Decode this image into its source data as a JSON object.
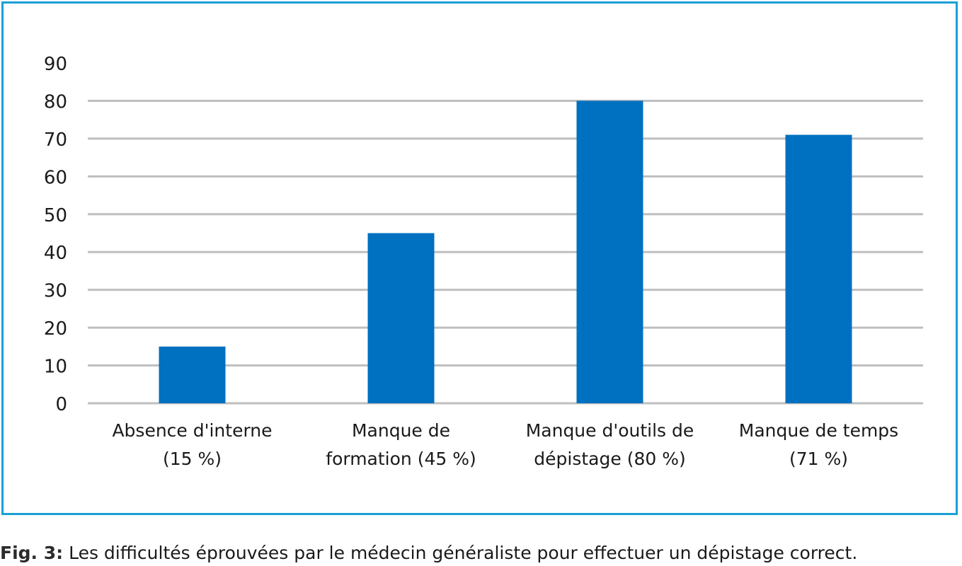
{
  "figure": {
    "caption_prefix": "Fig. 3",
    "caption_sep": ":",
    "caption_text": " Les difficultés éprouvées par le médecin généraliste pour effectuer un dépistage correct."
  },
  "colors": {
    "frame": "#1a9fd6",
    "bar": "#0070c0",
    "grid": "#bfbfbf"
  },
  "chart_data": {
    "type": "bar",
    "categories": [
      [
        "Absence d'interne",
        "(15 %)"
      ],
      [
        "Manque de",
        "formation (45 %)"
      ],
      [
        "Manque d'outils de",
        "dépistage (80 %)"
      ],
      [
        "Manque de temps",
        "(71 %)"
      ]
    ],
    "values": [
      15,
      45,
      80,
      71
    ],
    "ylim": [
      0,
      90
    ],
    "yticks": [
      0,
      10,
      20,
      30,
      40,
      50,
      60,
      70,
      80,
      90
    ],
    "grid": true,
    "legend": "none"
  }
}
